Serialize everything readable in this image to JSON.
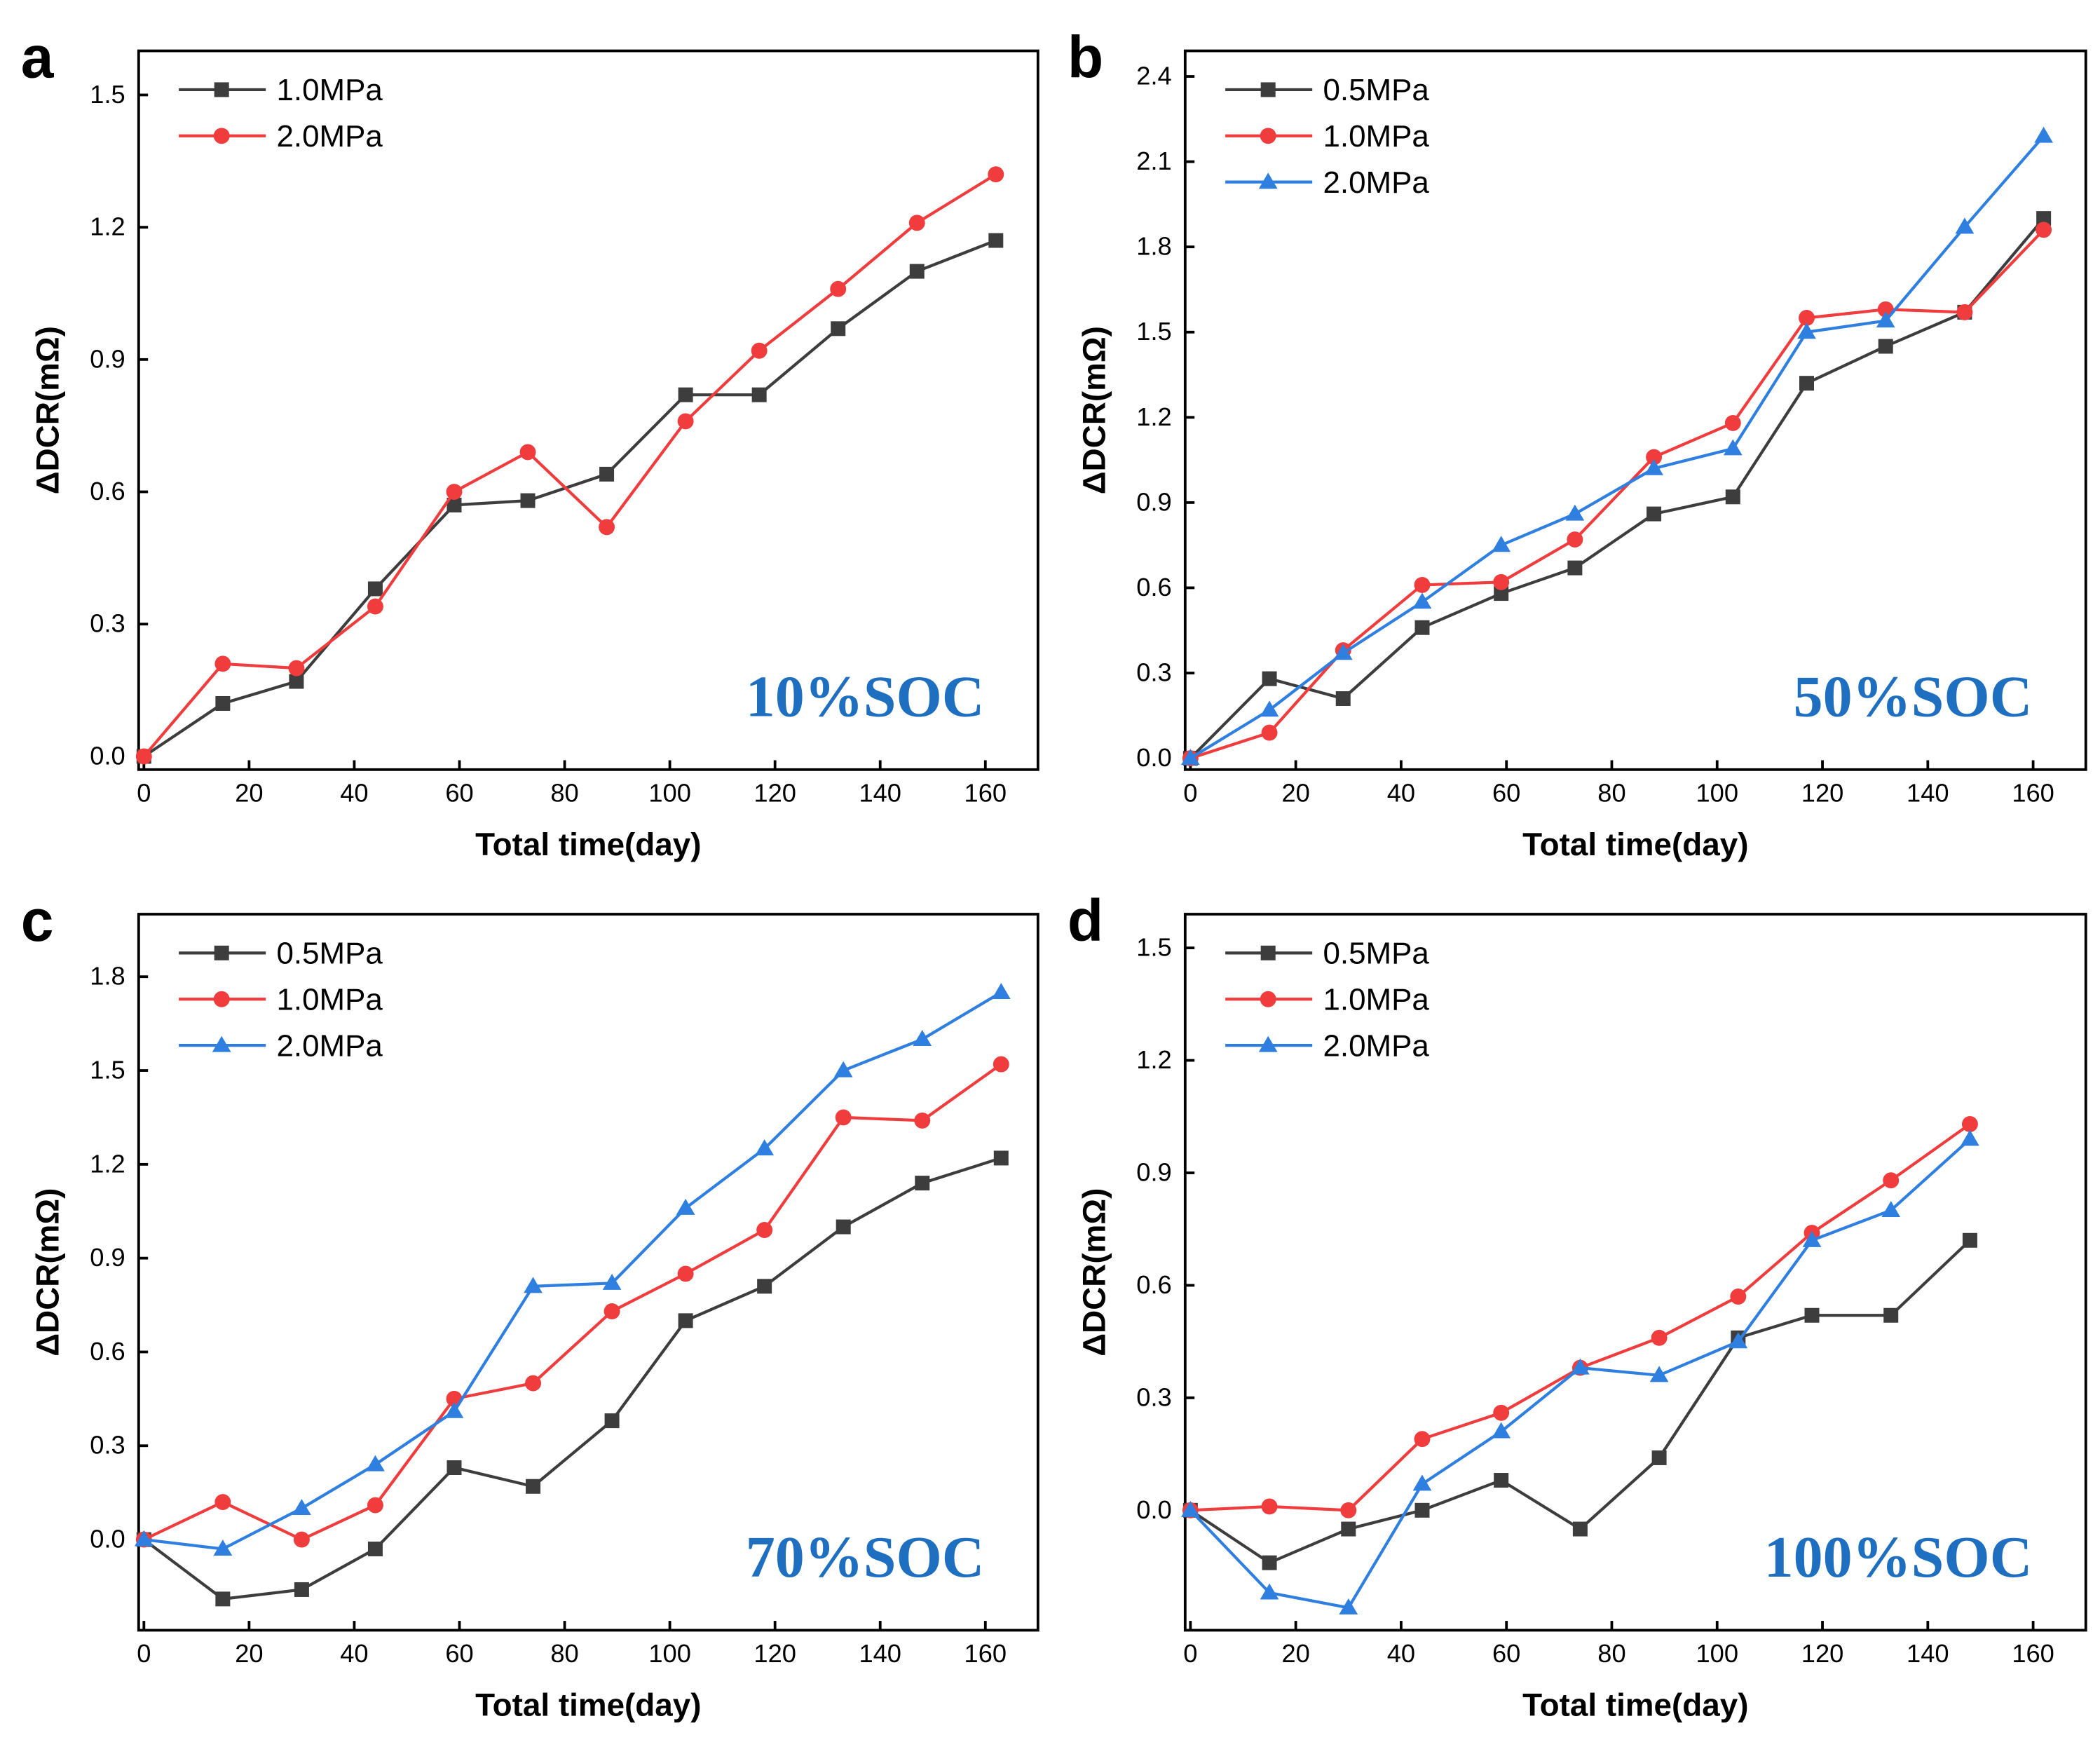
{
  "chart_data": [
    {
      "type": "line",
      "panel_label": "a",
      "annotation": "10%SOC",
      "xlabel": "Total time(day)",
      "ylabel": "ΔDCR(mΩ)",
      "xlim": [
        -1,
        170
      ],
      "ylim": [
        -0.03,
        1.6
      ],
      "xticks": [
        0,
        20,
        40,
        60,
        80,
        100,
        120,
        140,
        160
      ],
      "yticks": [
        0.0,
        0.3,
        0.6,
        0.9,
        1.2,
        1.5
      ],
      "legend_position": "top-left",
      "x": [
        0,
        15,
        29,
        44,
        59,
        73,
        88,
        103,
        117,
        132,
        147,
        162
      ],
      "series": [
        {
          "name": "1.0MPa",
          "color": "#3d3d3d",
          "marker": "square",
          "values": [
            0,
            0.12,
            0.17,
            0.38,
            0.57,
            0.58,
            0.64,
            0.82,
            0.82,
            0.97,
            1.1,
            1.17
          ]
        },
        {
          "name": "2.0MPa",
          "color": "#f03c3c",
          "marker": "circle",
          "values": [
            0,
            0.21,
            0.2,
            0.34,
            0.6,
            0.69,
            0.52,
            0.76,
            0.92,
            1.06,
            1.21,
            1.32
          ]
        }
      ]
    },
    {
      "type": "line",
      "panel_label": "b",
      "annotation": "50%SOC",
      "xlabel": "Total time(day)",
      "ylabel": "ΔDCR(mΩ)",
      "xlim": [
        -1,
        170
      ],
      "ylim": [
        -0.04,
        2.49
      ],
      "xticks": [
        0,
        20,
        40,
        60,
        80,
        100,
        120,
        140,
        160
      ],
      "yticks": [
        0.0,
        0.3,
        0.6,
        0.9,
        1.2,
        1.5,
        1.8,
        2.1,
        2.4
      ],
      "legend_position": "top-left",
      "x": [
        0,
        15,
        29,
        44,
        59,
        73,
        88,
        103,
        117,
        132,
        147,
        162
      ],
      "series": [
        {
          "name": "0.5MPa",
          "color": "#3d3d3d",
          "marker": "square",
          "values": [
            0,
            0.28,
            0.21,
            0.46,
            0.58,
            0.67,
            0.86,
            0.92,
            1.32,
            1.45,
            1.57,
            1.9
          ]
        },
        {
          "name": "1.0MPa",
          "color": "#f03c3c",
          "marker": "circle",
          "values": [
            0,
            0.09,
            0.38,
            0.61,
            0.62,
            0.77,
            1.06,
            1.18,
            1.55,
            1.58,
            1.57,
            1.86
          ]
        },
        {
          "name": "2.0MPa",
          "color": "#2f7fe0",
          "marker": "triangle",
          "values": [
            0,
            0.17,
            0.37,
            0.55,
            0.75,
            0.86,
            1.02,
            1.09,
            1.5,
            1.54,
            1.87,
            2.19
          ]
        }
      ]
    },
    {
      "type": "line",
      "panel_label": "c",
      "annotation": "70%SOC",
      "xlabel": "Total time(day)",
      "ylabel": "ΔDCR(mΩ)",
      "xlim": [
        -1,
        170
      ],
      "ylim": [
        -0.29,
        2.0
      ],
      "xticks": [
        0,
        20,
        40,
        60,
        80,
        100,
        120,
        140,
        160
      ],
      "yticks": [
        0.0,
        0.3,
        0.6,
        0.9,
        1.2,
        1.5,
        1.8
      ],
      "legend_position": "top-left",
      "x": [
        0,
        15,
        30,
        44,
        59,
        74,
        89,
        103,
        118,
        133,
        148,
        163
      ],
      "series": [
        {
          "name": "0.5MPa",
          "color": "#3d3d3d",
          "marker": "square",
          "values": [
            0,
            -0.19,
            -0.16,
            -0.03,
            0.23,
            0.17,
            0.38,
            0.7,
            0.81,
            1.0,
            1.14,
            1.22
          ]
        },
        {
          "name": "1.0MPa",
          "color": "#f03c3c",
          "marker": "circle",
          "values": [
            0,
            0.12,
            0.0,
            0.11,
            0.45,
            0.5,
            0.73,
            0.85,
            0.99,
            1.35,
            1.34,
            1.52
          ]
        },
        {
          "name": "2.0MPa",
          "color": "#2f7fe0",
          "marker": "triangle",
          "values": [
            0,
            -0.03,
            0.1,
            0.24,
            0.41,
            0.81,
            0.82,
            1.06,
            1.25,
            1.5,
            1.6,
            1.75
          ]
        }
      ]
    },
    {
      "type": "line",
      "panel_label": "d",
      "annotation": "100%SOC",
      "xlabel": "Total time(day)",
      "ylabel": "ΔDCR(mΩ)",
      "xlim": [
        -1,
        170
      ],
      "ylim": [
        -0.32,
        1.59
      ],
      "xticks": [
        0,
        20,
        40,
        60,
        80,
        100,
        120,
        140,
        160
      ],
      "yticks": [
        0.0,
        0.3,
        0.6,
        0.9,
        1.2,
        1.5
      ],
      "legend_position": "top-left",
      "x": [
        0,
        15,
        30,
        44,
        59,
        74,
        89,
        104,
        118,
        133,
        148
      ],
      "series": [
        {
          "name": "0.5MPa",
          "color": "#3d3d3d",
          "marker": "square",
          "values": [
            0,
            -0.14,
            -0.05,
            0.0,
            0.08,
            -0.05,
            0.14,
            0.46,
            0.52,
            0.52,
            0.72
          ]
        },
        {
          "name": "1.0MPa",
          "color": "#f03c3c",
          "marker": "circle",
          "values": [
            0,
            0.01,
            0.0,
            0.19,
            0.26,
            0.38,
            0.46,
            0.57,
            0.74,
            0.88,
            1.03
          ]
        },
        {
          "name": "2.0MPa",
          "color": "#2f7fe0",
          "marker": "triangle",
          "values": [
            0,
            -0.22,
            -0.26,
            0.07,
            0.21,
            0.38,
            0.36,
            0.45,
            0.72,
            0.8,
            0.99
          ]
        }
      ]
    }
  ],
  "annotation_color": "#1f6fc0"
}
